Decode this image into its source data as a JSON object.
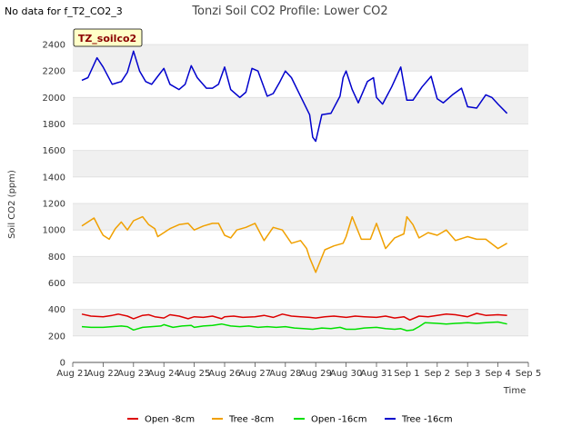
{
  "no_data_note": "No data for f_T2_CO2_3",
  "badge": "TZ_soilco2",
  "chart_data": {
    "type": "line",
    "title": "Tonzi Soil CO2 Profile: Lower CO2",
    "xlabel": "Time",
    "ylabel": "Soil CO2 (ppm)",
    "xlim": [
      0,
      15
    ],
    "ylim": [
      0,
      2400
    ],
    "y_ticks": [
      0,
      200,
      400,
      600,
      800,
      1000,
      1200,
      1400,
      1600,
      1800,
      2000,
      2200,
      2400
    ],
    "x_ticks": [
      {
        "value": 0,
        "label": "Aug 21"
      },
      {
        "value": 1,
        "label": "Aug 22"
      },
      {
        "value": 2,
        "label": "Aug 23"
      },
      {
        "value": 3,
        "label": "Aug 24"
      },
      {
        "value": 4,
        "label": "Aug 25"
      },
      {
        "value": 5,
        "label": "Aug 26"
      },
      {
        "value": 6,
        "label": "Aug 27"
      },
      {
        "value": 7,
        "label": "Aug 28"
      },
      {
        "value": 8,
        "label": "Aug 29"
      },
      {
        "value": 9,
        "label": "Aug 30"
      },
      {
        "value": 10,
        "label": "Aug 31"
      },
      {
        "value": 11,
        "label": "Sep 1"
      },
      {
        "value": 12,
        "label": "Sep 2"
      },
      {
        "value": 13,
        "label": "Sep 3"
      },
      {
        "value": 14,
        "label": "Sep 4"
      },
      {
        "value": 15,
        "label": "Sep 5"
      }
    ],
    "bands": [
      [
        200,
        400
      ],
      [
        600,
        800
      ],
      [
        1000,
        1200
      ],
      [
        1400,
        1600
      ],
      [
        1800,
        2000
      ],
      [
        2200,
        2400
      ]
    ],
    "series": [
      {
        "name": "Open -8cm",
        "color": "#dd0000",
        "x": [
          0.3,
          0.6,
          1.0,
          1.3,
          1.5,
          1.8,
          2.0,
          2.3,
          2.5,
          2.7,
          3.0,
          3.2,
          3.5,
          3.8,
          4.0,
          4.3,
          4.6,
          4.9,
          5.0,
          5.3,
          5.6,
          6.0,
          6.3,
          6.6,
          6.9,
          7.2,
          7.5,
          7.8,
          8.0,
          8.3,
          8.6,
          9.0,
          9.3,
          9.6,
          10.0,
          10.3,
          10.6,
          10.9,
          11.1,
          11.4,
          11.7,
          12.0,
          12.3,
          12.6,
          13.0,
          13.3,
          13.6,
          14.0,
          14.3
        ],
        "values": [
          365,
          350,
          345,
          355,
          365,
          350,
          330,
          355,
          360,
          345,
          335,
          360,
          350,
          330,
          345,
          340,
          350,
          330,
          345,
          350,
          340,
          345,
          355,
          340,
          365,
          350,
          345,
          340,
          335,
          345,
          350,
          340,
          350,
          345,
          340,
          350,
          335,
          345,
          320,
          350,
          345,
          355,
          365,
          360,
          345,
          370,
          355,
          360,
          355
        ]
      },
      {
        "name": "Tree -8cm",
        "color": "#f0a000",
        "x": [
          0.3,
          0.5,
          0.7,
          0.9,
          1.0,
          1.2,
          1.4,
          1.6,
          1.8,
          2.0,
          2.3,
          2.5,
          2.7,
          2.8,
          3.0,
          3.2,
          3.5,
          3.8,
          4.0,
          4.3,
          4.6,
          4.8,
          5.0,
          5.2,
          5.4,
          5.7,
          6.0,
          6.3,
          6.6,
          6.9,
          7.2,
          7.5,
          7.7,
          7.8,
          8.0,
          8.3,
          8.6,
          8.9,
          9.0,
          9.2,
          9.5,
          9.8,
          10.0,
          10.3,
          10.6,
          10.9,
          11.0,
          11.2,
          11.4,
          11.7,
          12.0,
          12.3,
          12.6,
          13.0,
          13.3,
          13.6,
          14.0,
          14.3
        ],
        "values": [
          1030,
          1060,
          1090,
          1000,
          960,
          930,
          1010,
          1060,
          1000,
          1070,
          1100,
          1040,
          1010,
          950,
          980,
          1010,
          1040,
          1050,
          1000,
          1030,
          1050,
          1050,
          960,
          940,
          1000,
          1020,
          1050,
          920,
          1020,
          1000,
          900,
          920,
          860,
          790,
          680,
          850,
          880,
          900,
          950,
          1100,
          930,
          930,
          1050,
          860,
          940,
          970,
          1100,
          1040,
          940,
          980,
          960,
          1000,
          920,
          950,
          930,
          930,
          860,
          900
        ]
      },
      {
        "name": "Open -16cm",
        "color": "#00e000",
        "x": [
          0.3,
          0.6,
          1.0,
          1.3,
          1.6,
          1.8,
          2.0,
          2.3,
          2.6,
          2.9,
          3.0,
          3.3,
          3.6,
          3.9,
          4.0,
          4.3,
          4.6,
          4.9,
          5.2,
          5.5,
          5.8,
          6.1,
          6.4,
          6.7,
          7.0,
          7.3,
          7.6,
          7.9,
          8.2,
          8.5,
          8.8,
          9.0,
          9.3,
          9.6,
          10.0,
          10.3,
          10.6,
          10.8,
          11.0,
          11.2,
          11.4,
          11.6,
          12.0,
          12.3,
          12.6,
          13.0,
          13.3,
          13.6,
          14.0,
          14.3
        ],
        "values": [
          270,
          265,
          265,
          270,
          275,
          270,
          245,
          265,
          270,
          275,
          285,
          265,
          275,
          280,
          265,
          275,
          280,
          290,
          275,
          270,
          275,
          265,
          270,
          265,
          270,
          260,
          255,
          250,
          260,
          255,
          265,
          250,
          250,
          260,
          265,
          255,
          250,
          255,
          240,
          245,
          270,
          300,
          295,
          290,
          295,
          300,
          295,
          300,
          305,
          290
        ]
      },
      {
        "name": "Tree -16cm",
        "color": "#0000cc",
        "x": [
          0.3,
          0.5,
          0.8,
          1.0,
          1.3,
          1.6,
          1.8,
          2.0,
          2.2,
          2.4,
          2.6,
          2.8,
          3.0,
          3.2,
          3.5,
          3.7,
          3.9,
          4.1,
          4.4,
          4.6,
          4.8,
          5.0,
          5.2,
          5.5,
          5.7,
          5.9,
          6.1,
          6.4,
          6.6,
          6.8,
          7.0,
          7.2,
          7.5,
          7.8,
          7.9,
          8.0,
          8.2,
          8.5,
          8.8,
          8.9,
          9.0,
          9.2,
          9.4,
          9.7,
          9.9,
          10.0,
          10.2,
          10.5,
          10.8,
          10.9,
          11.0,
          11.2,
          11.5,
          11.8,
          12.0,
          12.2,
          12.5,
          12.8,
          12.9,
          13.0,
          13.3,
          13.6,
          13.8,
          14.0,
          14.3
        ],
        "values": [
          2130,
          2150,
          2300,
          2230,
          2100,
          2120,
          2190,
          2350,
          2200,
          2120,
          2100,
          2160,
          2220,
          2100,
          2060,
          2100,
          2240,
          2150,
          2070,
          2070,
          2100,
          2230,
          2060,
          2000,
          2040,
          2220,
          2200,
          2010,
          2030,
          2110,
          2200,
          2150,
          2010,
          1870,
          1700,
          1670,
          1870,
          1880,
          2010,
          2150,
          2200,
          2060,
          1960,
          2120,
          2150,
          2000,
          1950,
          2080,
          2230,
          2100,
          1980,
          1980,
          2080,
          2160,
          1990,
          1960,
          2020,
          2070,
          2000,
          1930,
          1920,
          2020,
          2000,
          1950,
          1880
        ]
      }
    ]
  }
}
